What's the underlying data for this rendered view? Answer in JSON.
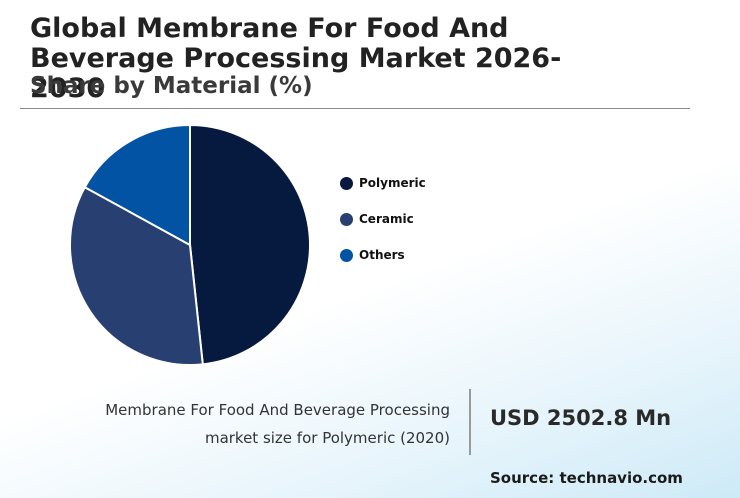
{
  "header": {
    "title": "Global Membrane For Food And Beverage Processing Market 2026-2030",
    "subtitle": "Share by Material (%)"
  },
  "chart_data": {
    "type": "pie",
    "categories": [
      "Polymeric",
      "Ceramic",
      "Others"
    ],
    "values": [
      48.3,
      34.7,
      17.0
    ],
    "colors": [
      "#061a40",
      "#283f72",
      "#0353a4"
    ],
    "title": "Share by Material (%)",
    "legend": "right"
  },
  "legend": {
    "items": [
      {
        "label": "Polymeric",
        "color": "#061a40"
      },
      {
        "label": "Ceramic",
        "color": "#283f72"
      },
      {
        "label": "Others",
        "color": "#0353a4"
      }
    ]
  },
  "footer": {
    "caption_line1": "Membrane For Food And Beverage Processing",
    "caption_line2": "market size for Polymeric (2020)",
    "market_value": "USD 2502.8 Mn",
    "source": "Source: technavio.com"
  }
}
